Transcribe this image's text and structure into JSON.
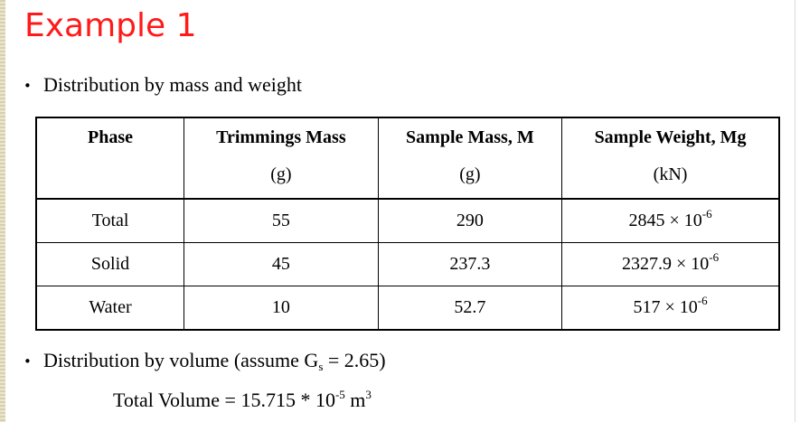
{
  "title": "Example 1",
  "section_1": {
    "text": "Distribution by mass and weight"
  },
  "table": {
    "headers": [
      {
        "name": "Phase"
      },
      {
        "name": "Trimmings Mass",
        "unit": "(g)"
      },
      {
        "name": "Sample Mass, M",
        "unit": "(g)"
      },
      {
        "name": "Sample Weight, Mg",
        "unit": "(kN)"
      }
    ],
    "rows": [
      [
        "Total",
        "55",
        "290",
        {
          "mantissa": "2845",
          "times": "× 10",
          "exponent": "-6"
        }
      ],
      [
        "Solid",
        "45",
        "237.3",
        {
          "mantissa": "2327.9",
          "times": "× 10",
          "exponent": "-6"
        }
      ],
      [
        "Water",
        "10",
        "52.7",
        {
          "mantissa": "517",
          "times": "× 10",
          "exponent": "-6"
        }
      ]
    ]
  },
  "section_2": {
    "text": "Distribution by volume (assume G",
    "subscript": "s",
    "text_after": "= 2.65)"
  },
  "total_volume": {
    "text": "Total Volume = 15.715 * 10",
    "exponent": "-5",
    "unit": "m",
    "unit_exponent": "3"
  }
}
